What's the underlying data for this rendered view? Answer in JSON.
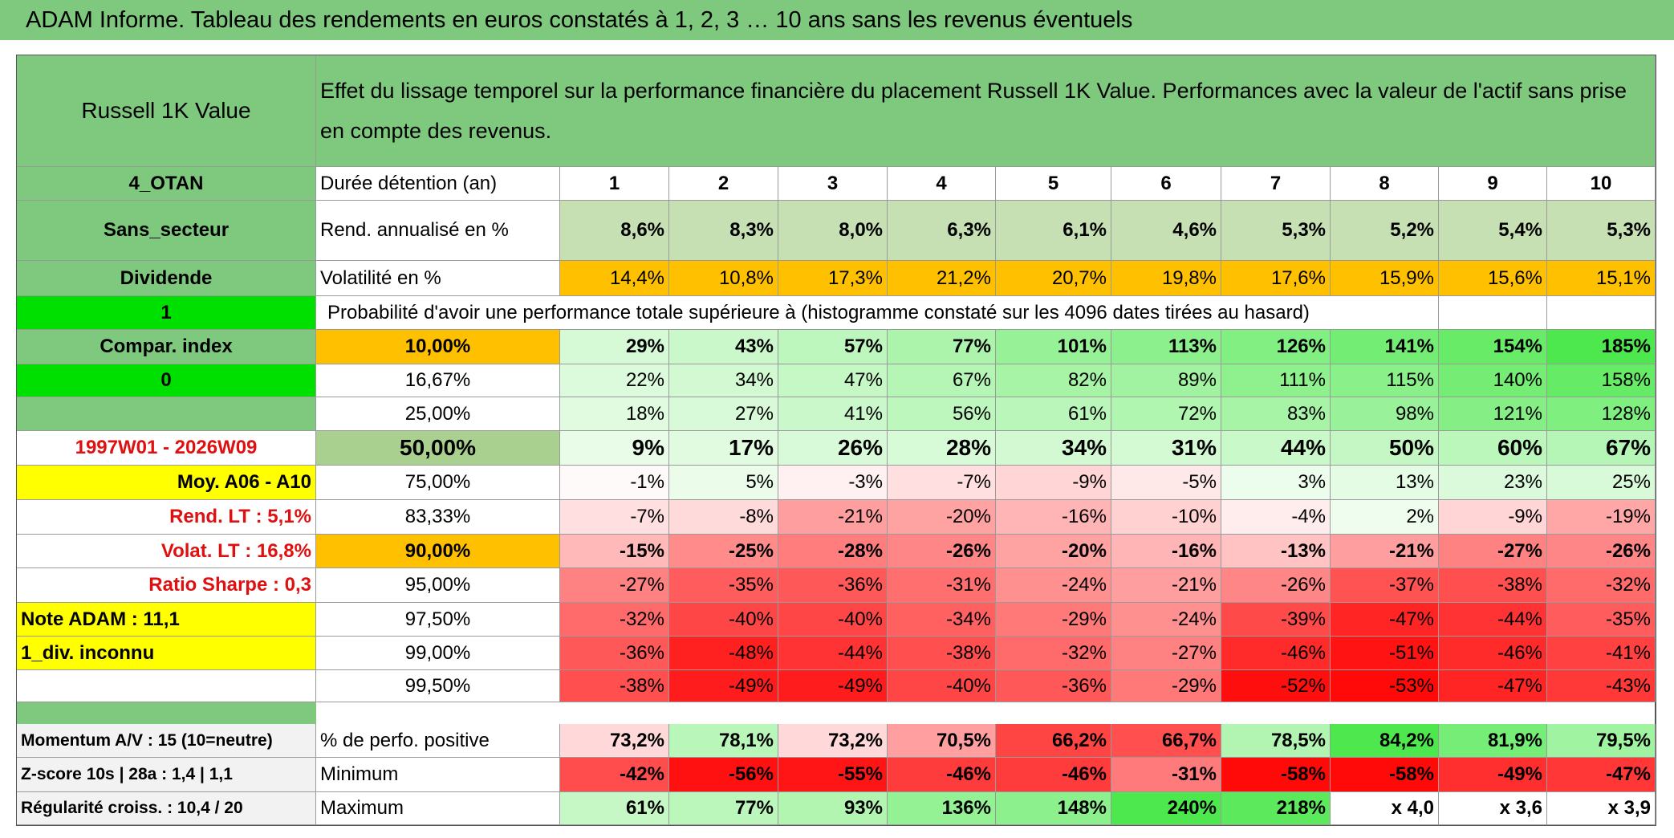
{
  "title": "ADAM Informe. Tableau des rendements en euros constatés à 1, 2, 3 … 10 ans sans les revenus éventuels",
  "asset": "Russell 1K Value",
  "description": "Effet du lissage temporel sur la performance financière du placement Russell 1K Value. Performances avec la valeur de l'actif sans prise en compte des revenus.",
  "rows": [
    {
      "side": "4_OTAN",
      "label": "Durée détention (an)",
      "cells": [
        1,
        2,
        3,
        4,
        5,
        6,
        7,
        8,
        9,
        10
      ]
    },
    {
      "side": "Sans_secteur",
      "label": "Rend. annualisé en %",
      "cells": [
        "8,6%",
        "8,3%",
        "8,0%",
        "6,3%",
        "6,1%",
        "4,6%",
        "5,3%",
        "5,2%",
        "5,4%",
        "5,3%"
      ]
    },
    {
      "side": "Dividende",
      "label": "Volatilité en %",
      "cells": [
        "14,4%",
        "10,8%",
        "17,3%",
        "21,2%",
        "20,7%",
        "19,8%",
        "17,6%",
        "15,9%",
        "15,6%",
        "15,1%"
      ]
    },
    {
      "side": "1",
      "note": "Probabilité d'avoir une performance totale supérieure à (histogramme constaté sur les 4096 dates tirées au hasard)"
    },
    {
      "side": "Compar. index",
      "label": "10,00%",
      "cells": [
        "29%",
        "43%",
        "57%",
        "77%",
        "101%",
        "113%",
        "126%",
        "141%",
        "154%",
        "185%"
      ]
    },
    {
      "side": "0",
      "label": "16,67%",
      "cells": [
        "22%",
        "34%",
        "47%",
        "67%",
        "82%",
        "89%",
        "111%",
        "115%",
        "140%",
        "158%"
      ]
    },
    {
      "label": "25,00%",
      "cells": [
        "18%",
        "27%",
        "41%",
        "56%",
        "61%",
        "72%",
        "83%",
        "98%",
        "121%",
        "128%"
      ]
    },
    {
      "side": "1997W01 - 2026W09",
      "label": "50,00%",
      "cells": [
        "9%",
        "17%",
        "26%",
        "28%",
        "34%",
        "31%",
        "44%",
        "50%",
        "60%",
        "67%"
      ]
    },
    {
      "side": "Moy. A06 - A10",
      "label": "75,00%",
      "cells": [
        "-1%",
        "5%",
        "-3%",
        "-7%",
        "-9%",
        "-5%",
        "3%",
        "13%",
        "23%",
        "25%"
      ]
    },
    {
      "side": "Rend. LT :   5,1%",
      "label": "83,33%",
      "cells": [
        "-7%",
        "-8%",
        "-21%",
        "-20%",
        "-16%",
        "-10%",
        "-4%",
        "2%",
        "-9%",
        "-19%"
      ]
    },
    {
      "side": "Volat. LT :   16,8%",
      "label": "90,00%",
      "cells": [
        "-15%",
        "-25%",
        "-28%",
        "-26%",
        "-20%",
        "-16%",
        "-13%",
        "-21%",
        "-27%",
        "-26%"
      ]
    },
    {
      "side": "Ratio Sharpe :   0,3",
      "label": "95,00%",
      "cells": [
        "-27%",
        "-35%",
        "-36%",
        "-31%",
        "-24%",
        "-21%",
        "-26%",
        "-37%",
        "-38%",
        "-32%"
      ]
    },
    {
      "side": "Note ADAM : 11,1",
      "label": "97,50%",
      "cells": [
        "-32%",
        "-40%",
        "-40%",
        "-34%",
        "-29%",
        "-24%",
        "-39%",
        "-47%",
        "-44%",
        "-35%"
      ]
    },
    {
      "side": "1_div. inconnu",
      "label": "99,00%",
      "cells": [
        "-36%",
        "-48%",
        "-44%",
        "-38%",
        "-32%",
        "-27%",
        "-46%",
        "-51%",
        "-46%",
        "-41%"
      ]
    },
    {
      "label": "99,50%",
      "cells": [
        "-38%",
        "-49%",
        "-49%",
        "-40%",
        "-36%",
        "-29%",
        "-52%",
        "-53%",
        "-47%",
        "-43%"
      ]
    }
  ],
  "summary": [
    {
      "side": "Momentum A/V : 15 (10=neutre)",
      "label": "% de perfo. positive",
      "cells": [
        "73,2%",
        "78,1%",
        "73,2%",
        "70,5%",
        "66,2%",
        "66,7%",
        "78,5%",
        "84,2%",
        "81,9%",
        "79,5%"
      ]
    },
    {
      "side": "Z-score 10s | 28a : 1,4 | 1,1",
      "label": "Minimum",
      "cells": [
        "-42%",
        "-56%",
        "-55%",
        "-46%",
        "-46%",
        "-31%",
        "-58%",
        "-58%",
        "-49%",
        "-47%"
      ]
    },
    {
      "side": "Régularité croiss. : 10,4 / 20",
      "label": "Maximum",
      "cells": [
        "61%",
        "77%",
        "93%",
        "136%",
        "148%",
        "240%",
        "218%",
        "x 4,0",
        "x 3,6",
        "x 3,9"
      ]
    }
  ]
}
